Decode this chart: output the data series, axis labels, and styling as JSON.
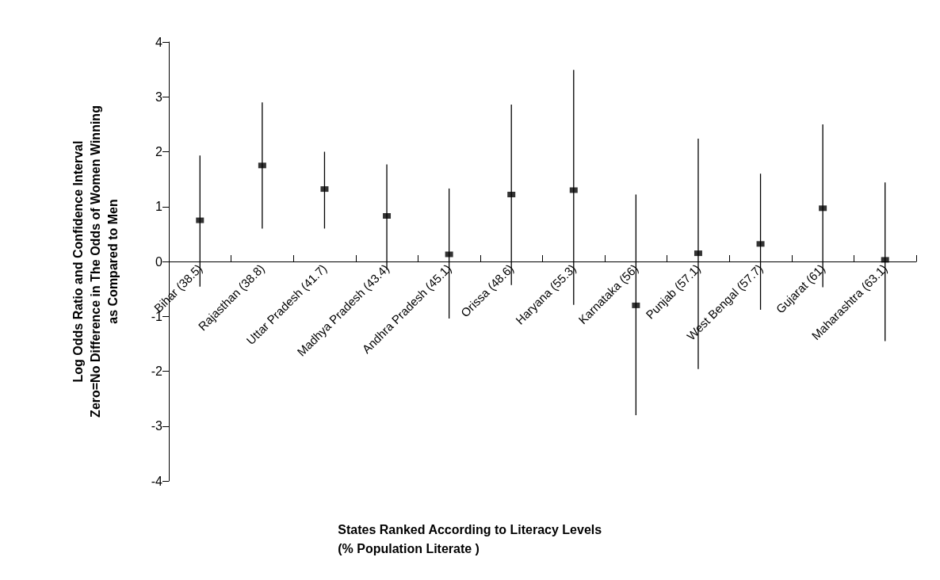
{
  "chart_data": {
    "type": "scatter",
    "ylabel": "Log Odds Ratio and Confidence Interval\nZero=No Difference in The Odds of Women Winning\nas Compared to Men",
    "xlabel": "States Ranked According to Literacy Levels\n(% Population Literate )",
    "categories": [
      "Bihar (38.5)",
      "Rajasthan (38.8)",
      "Uttar Pradesh (41.7)",
      "Madhya Pradesh (43.4)",
      "Andhra Pradesh (45.1)",
      "Orissa (48.6)",
      "Haryana (55.3)",
      "Karnataka (56)",
      "Punjab (57.1)",
      "West Bengal (57.7)",
      "Gujarat (61)",
      "Maharashtra (63.1)"
    ],
    "values": [
      0.75,
      1.75,
      1.32,
      0.83,
      0.13,
      1.22,
      1.3,
      -0.8,
      0.15,
      0.32,
      0.97,
      0.03
    ],
    "errors": [
      [
        -0.46,
        1.93
      ],
      [
        0.6,
        2.9
      ],
      [
        0.6,
        2.0
      ],
      [
        -0.15,
        1.77
      ],
      [
        -1.04,
        1.33
      ],
      [
        -0.43,
        2.86
      ],
      [
        -0.79,
        3.49
      ],
      [
        -2.8,
        1.22
      ],
      [
        -1.96,
        2.24
      ],
      [
        -0.88,
        1.6
      ],
      [
        -0.47,
        2.5
      ],
      [
        -1.45,
        1.44
      ]
    ],
    "color": "#000000",
    "marker": "square",
    "ylim": [
      -4,
      4
    ],
    "yticks": [
      -4,
      -3,
      -2,
      -1,
      0,
      1,
      2,
      3,
      4
    ]
  }
}
